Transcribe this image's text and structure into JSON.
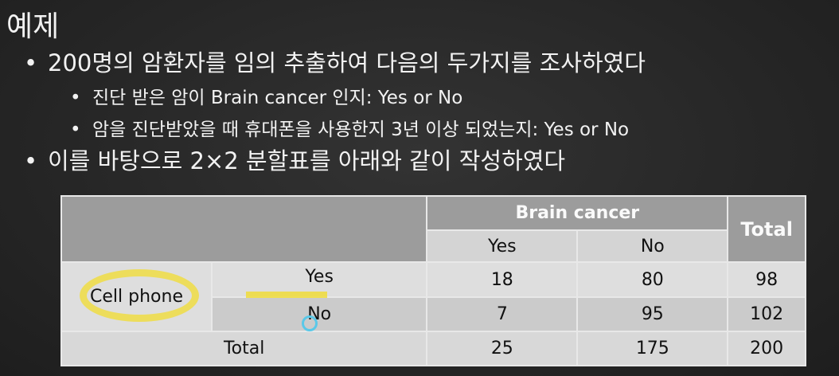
{
  "slide": {
    "title": "예제",
    "bullets": [
      {
        "level": 1,
        "text": "200명의 암환자를 임의 추출하여 다음의 두가지를 조사하였다"
      },
      {
        "level": 2,
        "text": "진단 받은 암이 Brain cancer 인지: Yes or No"
      },
      {
        "level": 2,
        "text": "암을 진단받았을 때 휴대폰을 사용한지 3년 이상 되었는지: Yes or No"
      },
      {
        "level": 1,
        "text": "이를 바탕으로 2×2 분할표를 아래와 같이 작성하였다"
      }
    ]
  },
  "table": {
    "col_group": "Brain cancer",
    "col_total": "Total",
    "cols": [
      "Yes",
      "No"
    ],
    "row_group": "Cell phone",
    "rows": [
      {
        "label": "Yes",
        "values": [
          "18",
          "80",
          "98"
        ]
      },
      {
        "label": "No",
        "values": [
          "7",
          "95",
          "102"
        ]
      }
    ],
    "total_row": {
      "label": "Total",
      "values": [
        "25",
        "175",
        "200"
      ]
    }
  },
  "colors": {
    "background": "#262626",
    "header": "#9c9c9c",
    "highlight": "#f0dc3a"
  }
}
